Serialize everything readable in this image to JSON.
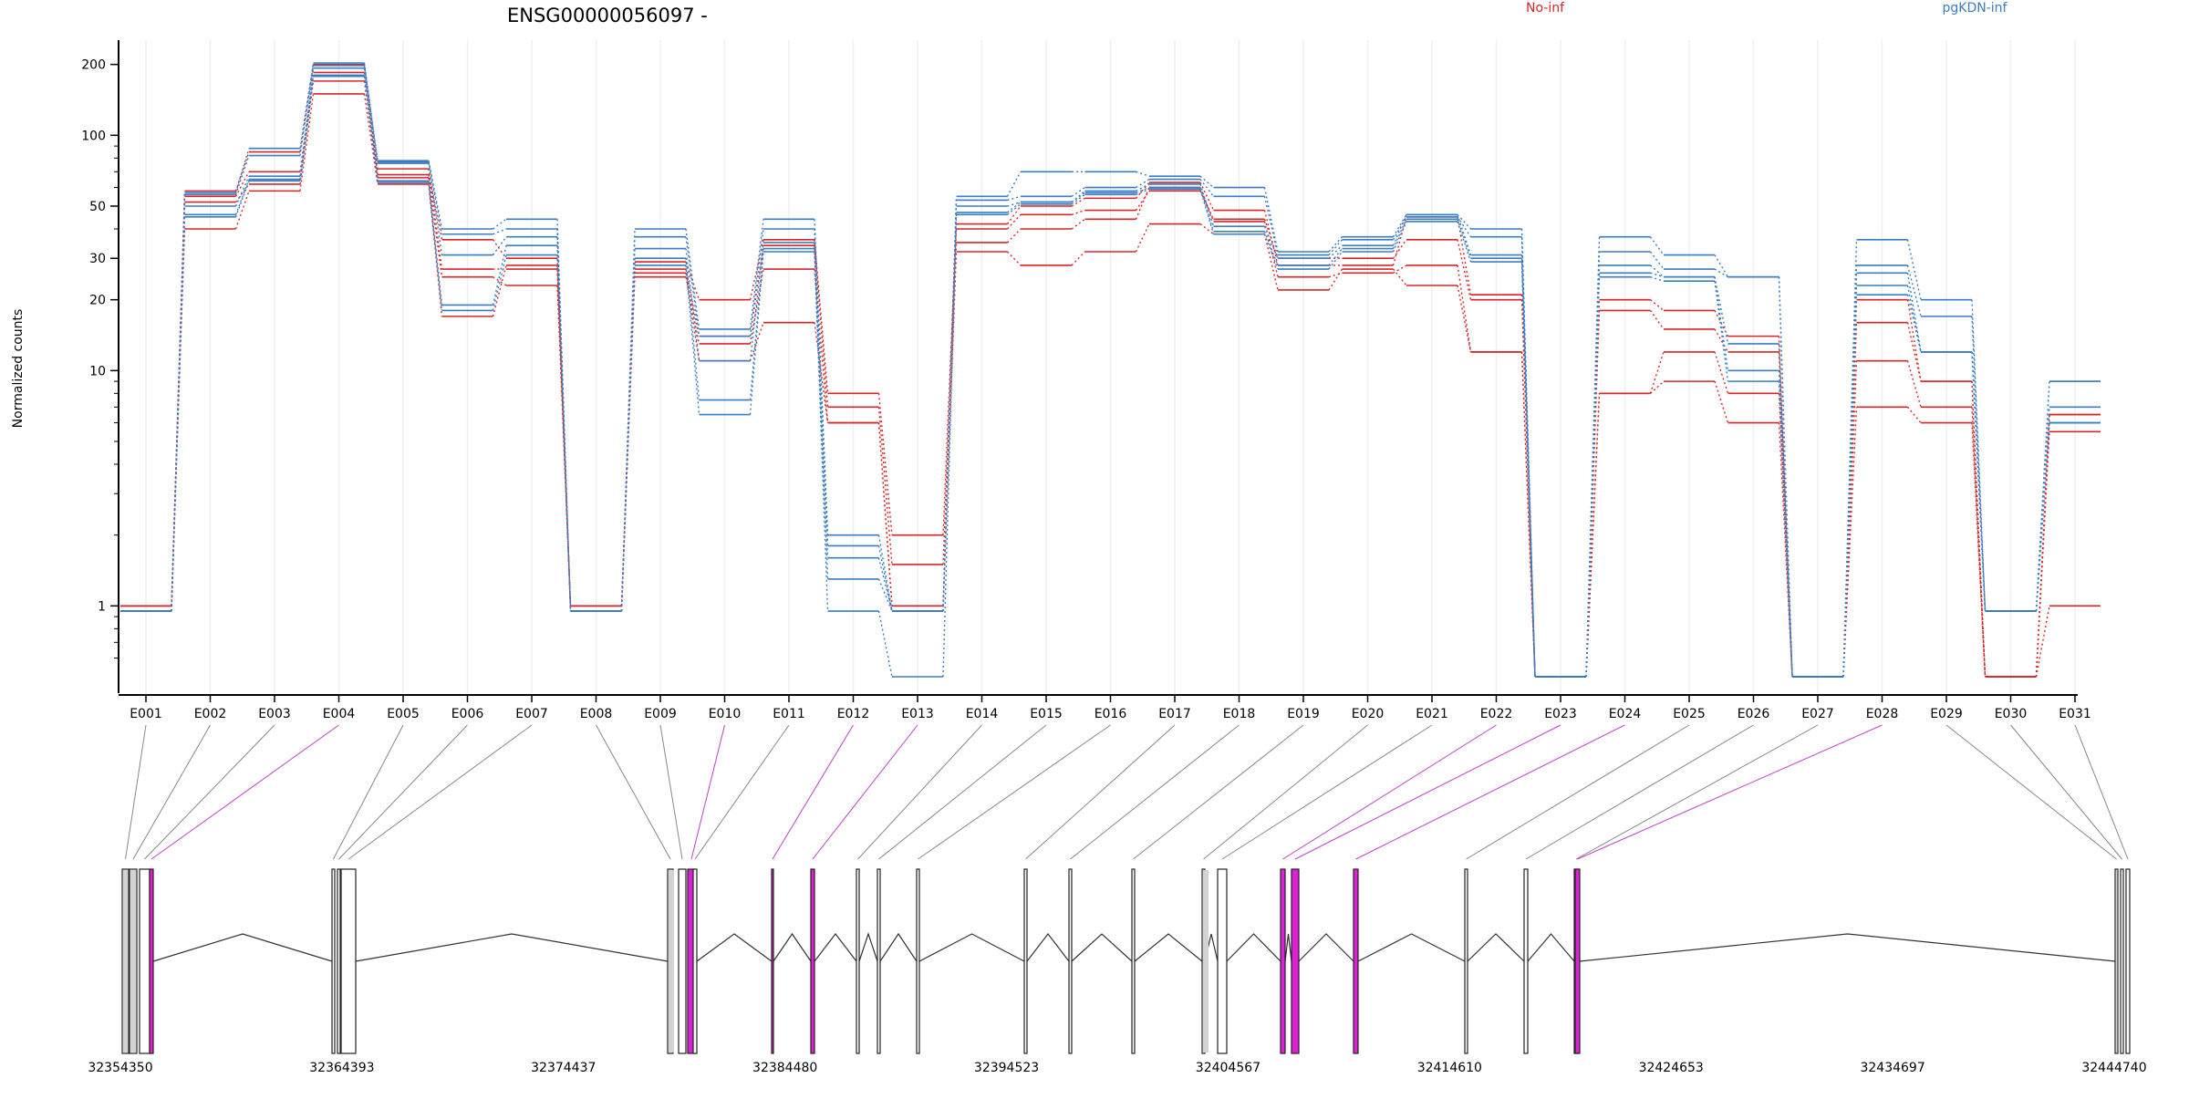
{
  "chart_data": {
    "type": "line",
    "title": "ENSG00000056097 -",
    "ylabel": "Normalized counts",
    "xlabel": "",
    "y_scale": "log",
    "ylim": [
      0.5,
      230
    ],
    "yticks": [
      1,
      10,
      20,
      30,
      50,
      100,
      200
    ],
    "legend": [
      {
        "name": "No-inf",
        "color": "#d62728",
        "position": "top-right"
      },
      {
        "name": "pgKDN-inf",
        "color": "#3a7dc2",
        "position": "top-right"
      }
    ],
    "categories": [
      "E001",
      "E002",
      "E003",
      "E004",
      "E005",
      "E006",
      "E007",
      "E008",
      "E009",
      "E010",
      "E011",
      "E012",
      "E013",
      "E014",
      "E015",
      "E016",
      "E017",
      "E018",
      "E019",
      "E020",
      "E021",
      "E022",
      "E023",
      "E024",
      "E025",
      "E026",
      "E027",
      "E028",
      "E029",
      "E030",
      "E031"
    ],
    "series": [
      {
        "group": "No-inf",
        "values": [
          1.0,
          58,
          85,
          200,
          68,
          36,
          30,
          1.0,
          29,
          20,
          36,
          8,
          2.0,
          42,
          50,
          54,
          63,
          48,
          28,
          28,
          45,
          21,
          0.5,
          20,
          18,
          14,
          0.5,
          20,
          9,
          0.5,
          6.5
        ]
      },
      {
        "group": "No-inf",
        "values": [
          1.0,
          55,
          70,
          185,
          72,
          27,
          27,
          1.0,
          27,
          14,
          34,
          7,
          1.5,
          40,
          46,
          48,
          58,
          44,
          30,
          30,
          36,
          20,
          0.5,
          18,
          15,
          12,
          0.5,
          16,
          9,
          0.5,
          6.5
        ]
      },
      {
        "group": "No-inf",
        "values": [
          1.0,
          52,
          62,
          170,
          66,
          25,
          23,
          1.0,
          25,
          13,
          27,
          6,
          1.0,
          35,
          40,
          44,
          60,
          43,
          25,
          26,
          28,
          12,
          0.5,
          8,
          12,
          8,
          0.5,
          11,
          7,
          0.5,
          5.5
        ]
      },
      {
        "group": "No-inf",
        "values": [
          1.0,
          40,
          58,
          150,
          62,
          17,
          28,
          1.0,
          26,
          11,
          16,
          6,
          1.0,
          32,
          28,
          32,
          42,
          38,
          22,
          27,
          23,
          12,
          0.5,
          8,
          9,
          6,
          0.5,
          7,
          6,
          0.5,
          1.0
        ]
      },
      {
        "group": "pgKDN-inf",
        "values": [
          0.95,
          57,
          88,
          203,
          78,
          40,
          44,
          0.95,
          40,
          15,
          44,
          2.0,
          0.95,
          55,
          70,
          70,
          67,
          60,
          32,
          37,
          46,
          40,
          0.5,
          37,
          31,
          25,
          0.5,
          36,
          20,
          0.95,
          9
        ]
      },
      {
        "group": "pgKDN-inf",
        "values": [
          0.95,
          56,
          82,
          198,
          77,
          38,
          40,
          0.95,
          37,
          14,
          40,
          1.8,
          0.95,
          53,
          55,
          60,
          65,
          55,
          31,
          36,
          45,
          37,
          0.5,
          32,
          27,
          25,
          0.5,
          28,
          17,
          0.95,
          9
        ]
      },
      {
        "group": "pgKDN-inf",
        "values": [
          0.95,
          50,
          67,
          193,
          76,
          31,
          37,
          0.95,
          33,
          11,
          35,
          1.6,
          0.95,
          50,
          52,
          58,
          62,
          41,
          30,
          34,
          46,
          31,
          0.5,
          28,
          25,
          13,
          0.5,
          26,
          12,
          0.95,
          7
        ]
      },
      {
        "group": "pgKDN-inf",
        "values": [
          0.95,
          46,
          65,
          180,
          64,
          19,
          34,
          0.95,
          30,
          7.5,
          33,
          1.3,
          0.95,
          47,
          52,
          57,
          60,
          39,
          28,
          33,
          44,
          30,
          0.5,
          26,
          25,
          10,
          0.5,
          23,
          12,
          0.95,
          6
        ]
      },
      {
        "group": "pgKDN-inf",
        "values": [
          0.95,
          45,
          64,
          178,
          63,
          18,
          31,
          0.95,
          28,
          6.5,
          32,
          0.95,
          0.5,
          46,
          51,
          56,
          59,
          38,
          27,
          32,
          43,
          29,
          0.5,
          25,
          24,
          9,
          0.5,
          21,
          12,
          0.95,
          6
        ]
      }
    ],
    "gene_model": {
      "coordinate_ticks": [
        "32354350",
        "32364393",
        "32374437",
        "32384480",
        "32394523",
        "32404567",
        "32414610",
        "32424653",
        "32434697",
        "32444740"
      ],
      "exon_highlight": [
        false,
        false,
        false,
        true,
        false,
        false,
        false,
        false,
        false,
        true,
        false,
        true,
        true,
        false,
        false,
        false,
        false,
        false,
        false,
        false,
        false,
        true,
        true,
        true,
        false,
        false,
        false,
        true,
        false,
        false,
        false
      ],
      "highlight_color": "#e020d8",
      "exon_color": "#d3d3d3"
    }
  }
}
